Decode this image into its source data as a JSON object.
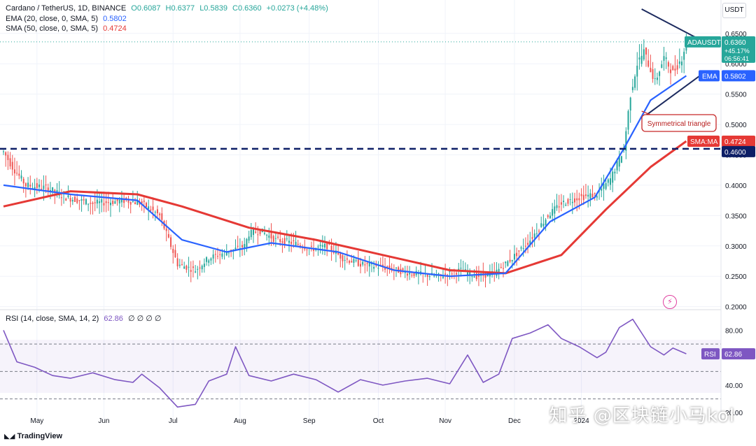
{
  "header": {
    "symbol_line": "Cardano / TetherUS, 1D, BINANCE",
    "open": "O0.6087",
    "high": "H0.6377",
    "low": "L0.5839",
    "close": "C0.6360",
    "change": "+0.0273 (+4.48%)",
    "ema_label": "EMA (20, close, 0, SMA, 5)",
    "ema_value": "0.5802",
    "sma_label": "SMA (50, close, 0, SMA, 5)",
    "sma_value": "0.4724",
    "rsi_label": "RSI (14, close, SMA, 14, 2)",
    "rsi_value": "62.86",
    "rsi_extra": "∅ ∅ ∅ ∅",
    "currency": "USDT"
  },
  "price_tags": {
    "symbol": "ADAUSDT",
    "price": "0.6360",
    "change_pct": "+45.17%",
    "countdown": "06:56:41",
    "ema_name": "EMA",
    "ema": "0.5802",
    "sma_name": "SMA:MA",
    "sma": "0.4724",
    "support": "0.4600",
    "rsi_name": "RSI",
    "rsi": "62.86"
  },
  "annotation": "Symmetrical triangle",
  "watermark": "知乎 @区块链小马kol",
  "brand": "TradingView",
  "colors": {
    "up": "#26a69a",
    "down": "#ef5350",
    "ema": "#2962ff",
    "sma": "#e53935",
    "rsi": "#7e57c2",
    "support": "#0c1e66",
    "triangle": "#1c2a5e"
  },
  "chart_data": [
    {
      "type": "candlestick",
      "title": "Cardano / TetherUS, 1D, BINANCE",
      "x_ticks": [
        "May",
        "Jun",
        "Jul",
        "Aug",
        "Sep",
        "Oct",
        "Nov",
        "Dec",
        "2024"
      ],
      "y_ticks": [
        "0.6500",
        "0.6000",
        "0.5500",
        "0.5000",
        "0.4500",
        "0.4000",
        "0.3500",
        "0.3000",
        "0.2500",
        "0.2000"
      ],
      "ylim": [
        0.195,
        0.705
      ],
      "support_level": 0.46,
      "price_path": [
        [
          0,
          0.455
        ],
        [
          4,
          0.43
        ],
        [
          10,
          0.4
        ],
        [
          20,
          0.395
        ],
        [
          28,
          0.38
        ],
        [
          40,
          0.37
        ],
        [
          55,
          0.375
        ],
        [
          62,
          0.37
        ],
        [
          70,
          0.35
        ],
        [
          78,
          0.27
        ],
        [
          86,
          0.26
        ],
        [
          92,
          0.28
        ],
        [
          100,
          0.29
        ],
        [
          108,
          0.3
        ],
        [
          110,
          0.32
        ],
        [
          115,
          0.325
        ],
        [
          122,
          0.31
        ],
        [
          130,
          0.305
        ],
        [
          138,
          0.295
        ],
        [
          145,
          0.3
        ],
        [
          152,
          0.28
        ],
        [
          160,
          0.27
        ],
        [
          170,
          0.265
        ],
        [
          182,
          0.255
        ],
        [
          195,
          0.25
        ],
        [
          205,
          0.26
        ],
        [
          212,
          0.25
        ],
        [
          220,
          0.255
        ],
        [
          228,
          0.28
        ],
        [
          236,
          0.31
        ],
        [
          244,
          0.35
        ],
        [
          250,
          0.37
        ],
        [
          258,
          0.38
        ],
        [
          266,
          0.385
        ],
        [
          272,
          0.41
        ],
        [
          278,
          0.46
        ],
        [
          281,
          0.55
        ],
        [
          284,
          0.6
        ],
        [
          287,
          0.62
        ],
        [
          292,
          0.57
        ],
        [
          296,
          0.61
        ],
        [
          300,
          0.585
        ],
        [
          304,
          0.61
        ],
        [
          306,
          0.636
        ]
      ],
      "sma50_path": [
        [
          0,
          0.365
        ],
        [
          30,
          0.39
        ],
        [
          60,
          0.385
        ],
        [
          80,
          0.365
        ],
        [
          110,
          0.33
        ],
        [
          140,
          0.31
        ],
        [
          170,
          0.285
        ],
        [
          200,
          0.26
        ],
        [
          225,
          0.255
        ],
        [
          250,
          0.285
        ],
        [
          270,
          0.36
        ],
        [
          290,
          0.43
        ],
        [
          306,
          0.4724
        ]
      ],
      "ema20_path": [
        [
          0,
          0.4
        ],
        [
          30,
          0.385
        ],
        [
          60,
          0.375
        ],
        [
          80,
          0.31
        ],
        [
          100,
          0.29
        ],
        [
          120,
          0.305
        ],
        [
          150,
          0.29
        ],
        [
          175,
          0.26
        ],
        [
          200,
          0.25
        ],
        [
          225,
          0.255
        ],
        [
          245,
          0.34
        ],
        [
          265,
          0.38
        ],
        [
          278,
          0.46
        ],
        [
          290,
          0.54
        ],
        [
          306,
          0.5802
        ]
      ],
      "triangle": {
        "upper": [
          [
            286,
            0.69
          ],
          [
            312,
            0.64
          ]
        ],
        "lower": [
          [
            286,
            0.51
          ],
          [
            312,
            0.58
          ]
        ]
      }
    },
    {
      "type": "line",
      "title": "RSI (14, close, SMA, 14, 2)",
      "y_ticks": [
        "80.00",
        "40.00",
        "20.00"
      ],
      "ylim": [
        15,
        95
      ],
      "levels": [
        70,
        50,
        30
      ],
      "rsi_path": [
        [
          0,
          80
        ],
        [
          6,
          57
        ],
        [
          14,
          53
        ],
        [
          22,
          47
        ],
        [
          30,
          45
        ],
        [
          40,
          49
        ],
        [
          50,
          44
        ],
        [
          58,
          42
        ],
        [
          62,
          48
        ],
        [
          70,
          38
        ],
        [
          78,
          24
        ],
        [
          86,
          26
        ],
        [
          92,
          43
        ],
        [
          100,
          48
        ],
        [
          104,
          68
        ],
        [
          110,
          47
        ],
        [
          120,
          43
        ],
        [
          130,
          48
        ],
        [
          140,
          44
        ],
        [
          150,
          35
        ],
        [
          160,
          44
        ],
        [
          170,
          40
        ],
        [
          180,
          43
        ],
        [
          190,
          45
        ],
        [
          200,
          41
        ],
        [
          208,
          62
        ],
        [
          215,
          42
        ],
        [
          222,
          48
        ],
        [
          228,
          74
        ],
        [
          236,
          78
        ],
        [
          244,
          84
        ],
        [
          250,
          74
        ],
        [
          258,
          68
        ],
        [
          266,
          60
        ],
        [
          270,
          64
        ],
        [
          276,
          82
        ],
        [
          282,
          88
        ],
        [
          290,
          68
        ],
        [
          296,
          62
        ],
        [
          300,
          67
        ],
        [
          306,
          62.86
        ]
      ]
    }
  ]
}
